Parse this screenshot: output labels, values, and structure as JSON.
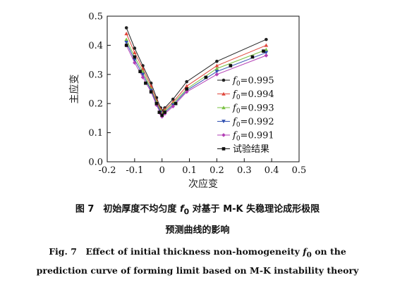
{
  "chart_data": {
    "type": "line",
    "title": "",
    "xlabel": "次应变",
    "ylabel": "主应变",
    "xlim": [
      -0.2,
      0.5
    ],
    "ylim": [
      0.0,
      0.5
    ],
    "xticks": [
      "-0.2",
      "-0.1",
      "0",
      "0.1",
      "0.2",
      "0.3",
      "0.4",
      "0.5"
    ],
    "yticks": [
      "0.0",
      "0.1",
      "0.2",
      "0.3",
      "0.4",
      "0.5"
    ],
    "grid": false,
    "legend_position": "bottom-right",
    "legend_f_symbol": "f",
    "legend_f_sub": "0",
    "series": [
      {
        "name": "=0.995",
        "color": "#222222",
        "marker": "circle",
        "x": [
          -0.13,
          -0.1,
          -0.07,
          -0.04,
          -0.02,
          -0.005,
          0.0,
          0.01,
          0.04,
          0.09,
          0.2,
          0.38
        ],
        "y": [
          0.46,
          0.39,
          0.33,
          0.27,
          0.22,
          0.185,
          0.175,
          0.185,
          0.215,
          0.275,
          0.345,
          0.42
        ]
      },
      {
        "name": "=0.994",
        "color": "#e0473c",
        "marker": "triangle",
        "x": [
          -0.13,
          -0.1,
          -0.07,
          -0.04,
          -0.02,
          -0.005,
          0.0,
          0.01,
          0.04,
          0.09,
          0.2,
          0.38
        ],
        "y": [
          0.44,
          0.375,
          0.32,
          0.26,
          0.21,
          0.18,
          0.17,
          0.18,
          0.205,
          0.26,
          0.33,
          0.4
        ]
      },
      {
        "name": "=0.993",
        "color": "#7ac142",
        "marker": "triangle",
        "x": [
          -0.13,
          -0.1,
          -0.07,
          -0.04,
          -0.02,
          -0.005,
          0.0,
          0.01,
          0.04,
          0.09,
          0.2,
          0.38
        ],
        "y": [
          0.42,
          0.36,
          0.31,
          0.25,
          0.205,
          0.175,
          0.165,
          0.175,
          0.2,
          0.25,
          0.32,
          0.385
        ]
      },
      {
        "name": "=0.992",
        "color": "#2f4fb0",
        "marker": "triangle-down",
        "x": [
          -0.13,
          -0.1,
          -0.07,
          -0.04,
          -0.02,
          -0.005,
          0.0,
          0.01,
          0.04,
          0.09,
          0.2,
          0.38
        ],
        "y": [
          0.41,
          0.35,
          0.3,
          0.245,
          0.2,
          0.17,
          0.16,
          0.17,
          0.195,
          0.245,
          0.31,
          0.375
        ]
      },
      {
        "name": "=0.991",
        "color": "#b23fb5",
        "marker": "diamond",
        "x": [
          -0.13,
          -0.1,
          -0.07,
          -0.04,
          -0.02,
          -0.005,
          0.0,
          0.01,
          0.04,
          0.09,
          0.2,
          0.38
        ],
        "y": [
          0.4,
          0.34,
          0.29,
          0.24,
          0.195,
          0.165,
          0.155,
          0.165,
          0.19,
          0.24,
          0.3,
          0.365
        ]
      }
    ],
    "experiment": {
      "name": "试验结果",
      "color": "#111111",
      "marker": "square",
      "x": [
        -0.13,
        -0.1,
        -0.08,
        -0.06,
        -0.04,
        -0.02,
        -0.01,
        0.0,
        0.01,
        0.05,
        0.09,
        0.16,
        0.25,
        0.33,
        0.37
      ],
      "y": [
        0.4,
        0.36,
        0.31,
        0.27,
        0.24,
        0.2,
        0.17,
        0.16,
        0.17,
        0.2,
        0.25,
        0.29,
        0.33,
        0.36,
        0.38
      ]
    }
  },
  "caption": {
    "zh_line1_prefix": "图 7　初始厚度不均匀度 ",
    "zh_line1_symbol": "f",
    "zh_line1_sub": "0",
    "zh_line1_suffix": " 对基于 M-K 失稳理论成形极限",
    "zh_line2": "预测曲线的影响",
    "en_line1_prefix": "Fig. 7　Effect of initial thickness non-homogeneity ",
    "en_line1_symbol": "f",
    "en_line1_sub": "0",
    "en_line1_suffix": " on the",
    "en_line2": "prediction curve of forming limit based on M-K instability theory"
  }
}
